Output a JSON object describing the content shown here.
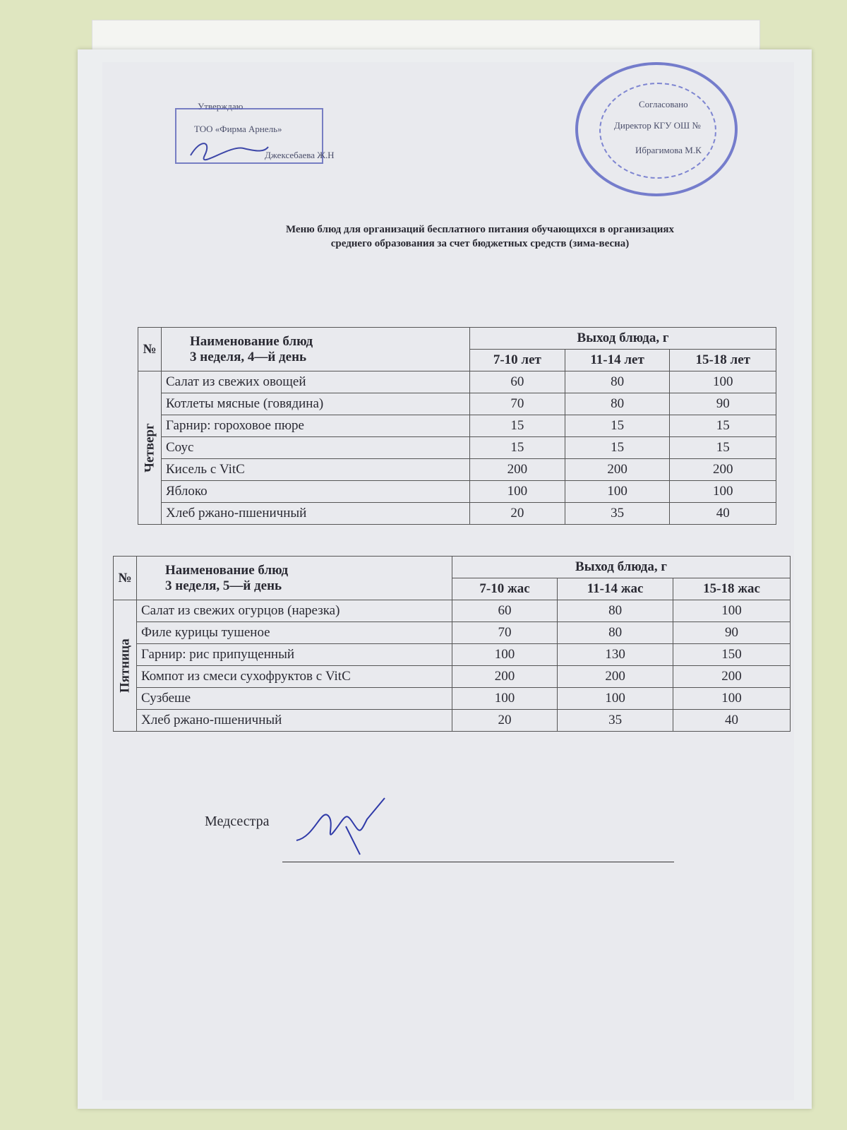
{
  "approval_left": {
    "heading": "Утверждаю",
    "org": "ТОО «Фирма Арнель»",
    "name": "Джексебаева Ж.Н"
  },
  "approval_right": {
    "heading": "Согласовано",
    "position": "Директор КГУ ОШ №",
    "name": "Ибрагимова М.К"
  },
  "title": {
    "line1": "Меню блюд для организаций бесплатного питания обучающихся в организациях",
    "line2": "среднего образования за счет бюджетных средств (зима-весна)"
  },
  "tables": [
    {
      "no": "№",
      "name_header": "Наименование блюд",
      "subheader": "3 неделя, 4—й день",
      "yield_header": "Выход блюда, г",
      "ages": [
        "7-10 лет",
        "11-14 лет",
        "15-18 лет"
      ],
      "day": "Четверг",
      "rows": [
        [
          "Салат из свежих овощей",
          "60",
          "80",
          "100"
        ],
        [
          "Котлеты мясные (говядина)",
          "70",
          "80",
          "90"
        ],
        [
          "Гарнир: гороховое пюре",
          "15",
          "15",
          "15"
        ],
        [
          "Соус",
          "15",
          "15",
          "15"
        ],
        [
          "Кисель с VitC",
          "200",
          "200",
          "200"
        ],
        [
          "Яблоко",
          "100",
          "100",
          "100"
        ],
        [
          "Хлеб ржано-пшеничный",
          "20",
          "35",
          "40"
        ]
      ]
    },
    {
      "no": "№",
      "name_header": "Наименование блюд",
      "subheader": "3 неделя,  5—й день",
      "yield_header": "Выход блюда, г",
      "ages": [
        "7-10 жас",
        "11-14 жас",
        "15-18 жас"
      ],
      "day": "Пятница",
      "rows": [
        [
          "Салат из свежих огурцов (нарезка)",
          "60",
          "80",
          "100"
        ],
        [
          "Филе курицы тушеное",
          "70",
          "80",
          "90"
        ],
        [
          "Гарнир: рис припущенный",
          "100",
          "130",
          "150"
        ],
        [
          "Компот из смеси сухофруктов с VitC",
          "200",
          "200",
          "200"
        ],
        [
          "Сузбеше",
          "100",
          "100",
          "100"
        ],
        [
          "Хлеб ржано-пшеничный",
          "20",
          "35",
          "40"
        ]
      ]
    }
  ],
  "signature": {
    "label": "Медсестра"
  }
}
